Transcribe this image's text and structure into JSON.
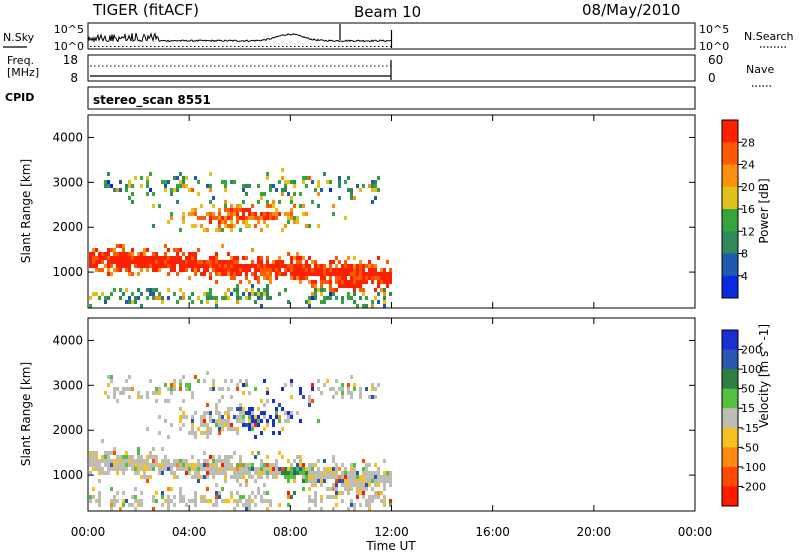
{
  "header": {
    "station": "TIGER (fitACF)",
    "beam": "Beam 10",
    "date": "08/May/2010"
  },
  "small_panels": {
    "nsky_label": "N.Sky",
    "nsearch_label": "N.Search",
    "freq_label_1": "Freq.",
    "freq_label_2": "[MHz]",
    "nave_label": "Nave",
    "cpid_label": "CPID",
    "cpid_value": "stereo_scan 8551",
    "noise_left_ticks": [
      "10^5",
      "10^0"
    ],
    "noise_right_ticks": [
      "10^5",
      "10^0"
    ],
    "freq_left_ticks": [
      "18",
      "8"
    ],
    "freq_right_ticks": [
      "60",
      "0"
    ]
  },
  "colors": {
    "power_scale": [
      "#0a2ae0",
      "#1f5ab0",
      "#2f8a5a",
      "#36a43c",
      "#e0c21a",
      "#ff8f10",
      "#ff5a00",
      "#ff2000"
    ],
    "velocity_scale": [
      "#1a2fd0",
      "#2a55b0",
      "#2f8040",
      "#54c040",
      "#bdbdb4",
      "#f5c020",
      "#ff8a10",
      "#ff4a00",
      "#ff1a00"
    ]
  },
  "chart_data": [
    {
      "type": "heatmap",
      "name": "power",
      "ylabel": "Slant Range [km]",
      "yticks": [
        "1000",
        "2000",
        "3000",
        "4000"
      ],
      "ylim": [
        200,
        4500
      ],
      "colorbar_label": "Power [dB]",
      "colorbar_ticks": [
        "4",
        "8",
        "12",
        "16",
        "20",
        "24",
        "28"
      ],
      "colorbar_range": [
        0,
        32
      ]
    },
    {
      "type": "heatmap",
      "name": "velocity",
      "ylabel": "Slant Range [km]",
      "yticks": [
        "1000",
        "2000",
        "3000",
        "4000"
      ],
      "ylim": [
        200,
        4500
      ],
      "colorbar_label": "Velocity [m s^-1]",
      "colorbar_ticks": [
        "200",
        "100",
        "50",
        "15",
        "-15",
        "-50",
        "-100",
        "-200"
      ]
    }
  ],
  "xaxis": {
    "label": "Time UT",
    "ticks": [
      "00:00",
      "04:00",
      "08:00",
      "12:00",
      "16:00",
      "20:00",
      "00:00"
    ],
    "xlim_hours": [
      0,
      24
    ],
    "data_end_hour": 12
  }
}
